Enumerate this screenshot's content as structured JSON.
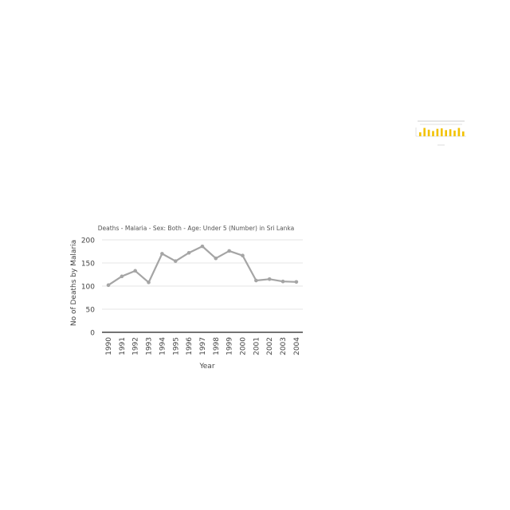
{
  "chart_data": {
    "type": "line",
    "title": "Deaths - Malaria - Sex: Both - Age: Under 5 (Number) in Sri Lanka",
    "xlabel": "Year",
    "ylabel": "No of Deaths by Malaria",
    "x": [
      "1990",
      "1991",
      "1992",
      "1993",
      "1994",
      "1995",
      "1996",
      "1997",
      "1998",
      "1999",
      "2000",
      "2001",
      "2002",
      "2003",
      "2004"
    ],
    "series": [
      {
        "values": [
          102,
          121,
          133,
          108,
          170,
          154,
          172,
          186,
          160,
          176,
          166,
          112,
          115,
          110,
          109
        ]
      }
    ],
    "ylim": [
      0,
      200
    ],
    "yticks": [
      0,
      50,
      100,
      150,
      200
    ],
    "grid": true,
    "legend": "none",
    "line_color": "#a5a5a5",
    "thumbnail": {
      "type": "bar",
      "bar_color": "#f2c200",
      "values": [
        0.45,
        0.95,
        0.75,
        0.6,
        0.85,
        0.9,
        0.7,
        0.8,
        0.65,
        0.95,
        0.55
      ]
    }
  }
}
